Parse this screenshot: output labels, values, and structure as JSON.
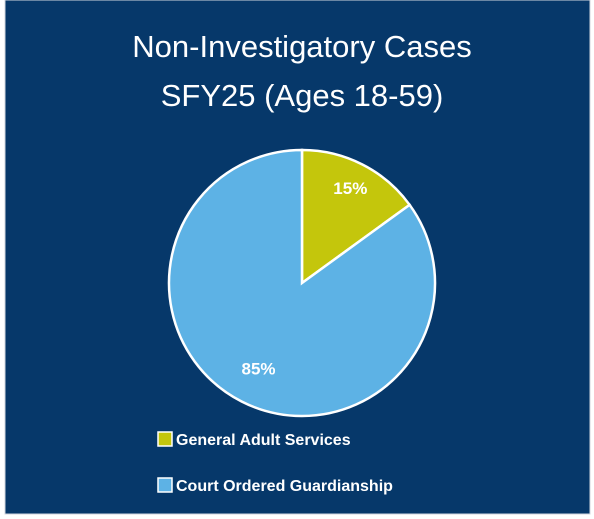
{
  "chart_data": {
    "type": "pie",
    "title": [
      "Non-Investigatory Cases",
      "SFY25 (Ages 18-59)"
    ],
    "categories": [
      "General Adult Services",
      "Court Ordered Guardianship"
    ],
    "values": [
      15,
      85
    ],
    "value_labels": [
      "15%",
      "85%"
    ],
    "colors": [
      "#c4c60c",
      "#5db2e5"
    ],
    "legend": "bottom"
  }
}
